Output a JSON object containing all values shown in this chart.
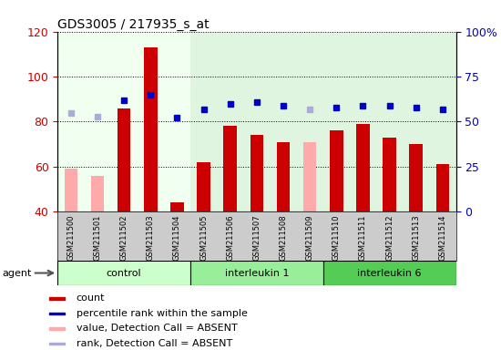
{
  "title": "GDS3005 / 217935_s_at",
  "samples": [
    "GSM211500",
    "GSM211501",
    "GSM211502",
    "GSM211503",
    "GSM211504",
    "GSM211505",
    "GSM211506",
    "GSM211507",
    "GSM211508",
    "GSM211509",
    "GSM211510",
    "GSM211511",
    "GSM211512",
    "GSM211513",
    "GSM211514"
  ],
  "bar_values": [
    null,
    null,
    86,
    113,
    44,
    62,
    78,
    74,
    71,
    null,
    76,
    79,
    73,
    70,
    61
  ],
  "bar_absent_values": [
    59,
    56,
    null,
    null,
    null,
    null,
    null,
    null,
    null,
    71,
    null,
    null,
    null,
    null,
    null
  ],
  "rank_values": [
    null,
    null,
    62,
    65,
    52,
    57,
    60,
    61,
    59,
    null,
    58,
    59,
    59,
    58,
    57
  ],
  "rank_absent_values": [
    55,
    53,
    null,
    null,
    null,
    null,
    null,
    null,
    null,
    57,
    null,
    null,
    null,
    null,
    null
  ],
  "groups": [
    {
      "label": "control",
      "start": 0,
      "end": 4,
      "color_plot": "#e8ffe8",
      "color_bar": "#ccffcc"
    },
    {
      "label": "interleukin 1",
      "start": 5,
      "end": 9,
      "color_plot": "#e8ffe8",
      "color_bar": "#88ee88"
    },
    {
      "label": "interleukin 6",
      "start": 10,
      "end": 14,
      "color_plot": "#e8ffe8",
      "color_bar": "#44dd44"
    }
  ],
  "ylim_left": [
    40,
    120
  ],
  "ylim_right": [
    0,
    100
  ],
  "yticks_left": [
    40,
    60,
    80,
    100,
    120
  ],
  "yticks_right": [
    0,
    25,
    50,
    75,
    100
  ],
  "yticklabels_right": [
    "0",
    "25",
    "50",
    "75",
    "100%"
  ],
  "bar_color": "#cc0000",
  "bar_absent_color": "#ffaaaa",
  "rank_color": "#0000cc",
  "rank_absent_color": "#aaaadd",
  "bg_color": "#ffffff",
  "bar_width": 0.5,
  "legend_items": [
    {
      "label": "count",
      "color": "#cc0000"
    },
    {
      "label": "percentile rank within the sample",
      "color": "#0000cc"
    },
    {
      "label": "value, Detection Call = ABSENT",
      "color": "#ffaaaa"
    },
    {
      "label": "rank, Detection Call = ABSENT",
      "color": "#aaaadd"
    }
  ]
}
